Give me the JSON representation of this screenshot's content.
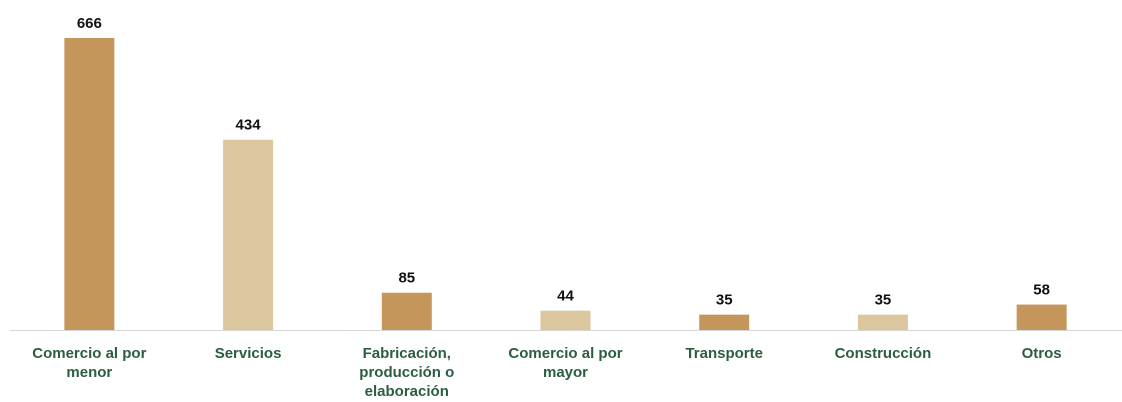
{
  "chart_data": {
    "type": "bar",
    "categories": [
      "Comercio al por menor",
      "Servicios",
      "Fabricación, producción o elaboración",
      "Comercio al por mayor",
      "Transporte",
      "Construcción",
      "Otros"
    ],
    "values": [
      666,
      434,
      85,
      44,
      35,
      35,
      58
    ],
    "colors": [
      "#c4965c",
      "#dbc69d",
      "#c4965c",
      "#dbc69d",
      "#c4965c",
      "#dbc69d",
      "#c4965c"
    ]
  }
}
